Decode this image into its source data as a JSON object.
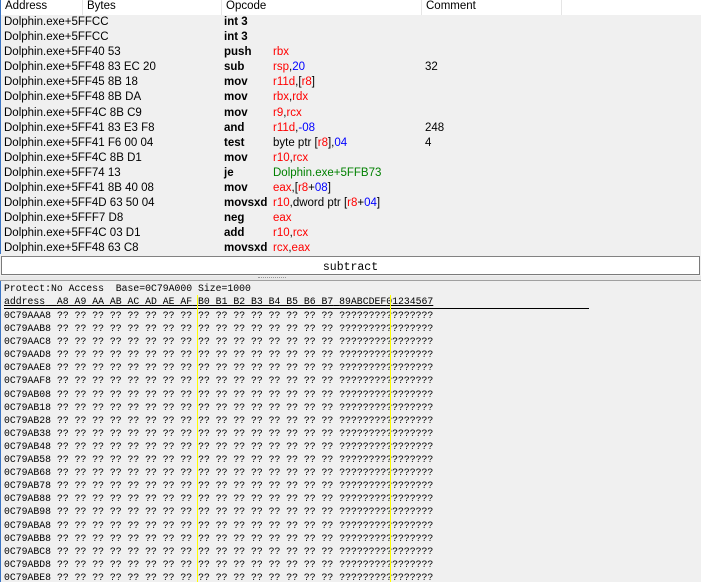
{
  "disassembler": {
    "columns": {
      "address": "Address",
      "bytes": "Bytes",
      "opcode": "Opcode",
      "comment": "Comment"
    },
    "colors": {
      "register": "#ff0000",
      "number": "#0000ff",
      "address": "#008000",
      "text": "#000000"
    },
    "rows": [
      {
        "address": "Dolphin.exe+5FF",
        "bytes": "CC",
        "opcode": "int 3",
        "args": [],
        "comment": ""
      },
      {
        "address": "Dolphin.exe+5FF",
        "bytes": "CC",
        "opcode": "int 3",
        "args": [],
        "comment": ""
      },
      {
        "address": "Dolphin.exe+5FF",
        "bytes": "40 53",
        "opcode": "push",
        "args": [
          [
            "rbx",
            "r"
          ]
        ],
        "comment": ""
      },
      {
        "address": "Dolphin.exe+5FF",
        "bytes": "48 83 EC 20",
        "opcode": "sub",
        "args": [
          [
            "rsp",
            "r"
          ],
          [
            ",",
            "t"
          ],
          [
            "20",
            "n"
          ]
        ],
        "comment": "32"
      },
      {
        "address": "Dolphin.exe+5FF",
        "bytes": "45 8B 18",
        "opcode": "mov",
        "args": [
          [
            "r11d",
            "r"
          ],
          [
            ",[",
            "t"
          ],
          [
            "r8",
            "r"
          ],
          [
            "]",
            "t"
          ]
        ],
        "comment": ""
      },
      {
        "address": "Dolphin.exe+5FF",
        "bytes": "48 8B DA",
        "opcode": "mov",
        "args": [
          [
            "rbx",
            "r"
          ],
          [
            ",",
            "t"
          ],
          [
            "rdx",
            "r"
          ]
        ],
        "comment": ""
      },
      {
        "address": "Dolphin.exe+5FF",
        "bytes": "4C 8B C9",
        "opcode": "mov",
        "args": [
          [
            "r9",
            "r"
          ],
          [
            ",",
            "t"
          ],
          [
            "rcx",
            "r"
          ]
        ],
        "comment": ""
      },
      {
        "address": "Dolphin.exe+5FF",
        "bytes": "41 83 E3 F8",
        "opcode": "and",
        "args": [
          [
            "r11d",
            "r"
          ],
          [
            ",",
            "t"
          ],
          [
            "-08",
            "n"
          ]
        ],
        "comment": "248"
      },
      {
        "address": "Dolphin.exe+5FF",
        "bytes": "41 F6 00 04",
        "opcode": "test",
        "args": [
          [
            "byte ptr [",
            "t"
          ],
          [
            "r8",
            "r"
          ],
          [
            "],",
            "t"
          ],
          [
            "04",
            "n"
          ]
        ],
        "comment": "4"
      },
      {
        "address": "Dolphin.exe+5FF",
        "bytes": "4C 8B D1",
        "opcode": "mov",
        "args": [
          [
            "r10",
            "r"
          ],
          [
            ",",
            "t"
          ],
          [
            "rcx",
            "r"
          ]
        ],
        "comment": ""
      },
      {
        "address": "Dolphin.exe+5FF",
        "bytes": "74 13",
        "opcode": "je",
        "args": [
          [
            "Dolphin.exe+5FFB73",
            "a"
          ]
        ],
        "comment": ""
      },
      {
        "address": "Dolphin.exe+5FF",
        "bytes": "41 8B 40 08",
        "opcode": "mov",
        "args": [
          [
            "eax",
            "r"
          ],
          [
            ",[",
            "t"
          ],
          [
            "r8",
            "r"
          ],
          [
            "+",
            "t"
          ],
          [
            "08",
            "n"
          ],
          [
            "]",
            "t"
          ]
        ],
        "comment": ""
      },
      {
        "address": "Dolphin.exe+5FF",
        "bytes": "4D 63 50 04",
        "opcode": "movsxd",
        "args": [
          [
            " r10",
            "r"
          ],
          [
            ",dword ptr [",
            "t"
          ],
          [
            "r8",
            "r"
          ],
          [
            "+",
            "t"
          ],
          [
            "04",
            "n"
          ],
          [
            "]",
            "t"
          ]
        ],
        "comment": ""
      },
      {
        "address": "Dolphin.exe+5FF",
        "bytes": "F7 D8",
        "opcode": "neg",
        "args": [
          [
            "eax",
            "r"
          ]
        ],
        "comment": ""
      },
      {
        "address": "Dolphin.exe+5FF",
        "bytes": "4C 03 D1",
        "opcode": "add",
        "args": [
          [
            "r10",
            "r"
          ],
          [
            ",",
            "t"
          ],
          [
            "rcx",
            "r"
          ]
        ],
        "comment": ""
      },
      {
        "address": "Dolphin.exe+5FF",
        "bytes": "48 63 C8",
        "opcode": "movsxd",
        "args": [
          [
            " rcx",
            "r"
          ],
          [
            ",",
            "t"
          ],
          [
            "eax",
            "r"
          ]
        ],
        "comment": ""
      }
    ]
  },
  "command_input": {
    "value": "subtract"
  },
  "hexview": {
    "info": "Protect:No Access  Base=0C79A000 Size=1000",
    "header": {
      "address": "address",
      "bytes_lo": "A8 A9 AA AB AC AD AE AF",
      "bytes_hi": "B0 B1 B2 B3 B4 B5 B6 B7",
      "ascii_lo": "89ABCDEF",
      "ascii_hi": "01234567"
    },
    "separator_color": "#ffff00",
    "rows": [
      {
        "address": "0C79AAA8",
        "bytes_lo": "?? ?? ?? ?? ?? ?? ?? ??",
        "bytes_hi": "?? ?? ?? ?? ?? ?? ?? ??",
        "ascii_lo": "????????",
        "ascii_hi": "????????"
      },
      {
        "address": "0C79AAB8",
        "bytes_lo": "?? ?? ?? ?? ?? ?? ?? ??",
        "bytes_hi": "?? ?? ?? ?? ?? ?? ?? ??",
        "ascii_lo": "????????",
        "ascii_hi": "????????"
      },
      {
        "address": "0C79AAC8",
        "bytes_lo": "?? ?? ?? ?? ?? ?? ?? ??",
        "bytes_hi": "?? ?? ?? ?? ?? ?? ?? ??",
        "ascii_lo": "????????",
        "ascii_hi": "????????"
      },
      {
        "address": "0C79AAD8",
        "bytes_lo": "?? ?? ?? ?? ?? ?? ?? ??",
        "bytes_hi": "?? ?? ?? ?? ?? ?? ?? ??",
        "ascii_lo": "????????",
        "ascii_hi": "????????"
      },
      {
        "address": "0C79AAE8",
        "bytes_lo": "?? ?? ?? ?? ?? ?? ?? ??",
        "bytes_hi": "?? ?? ?? ?? ?? ?? ?? ??",
        "ascii_lo": "????????",
        "ascii_hi": "????????"
      },
      {
        "address": "0C79AAF8",
        "bytes_lo": "?? ?? ?? ?? ?? ?? ?? ??",
        "bytes_hi": "?? ?? ?? ?? ?? ?? ?? ??",
        "ascii_lo": "????????",
        "ascii_hi": "????????"
      },
      {
        "address": "0C79AB08",
        "bytes_lo": "?? ?? ?? ?? ?? ?? ?? ??",
        "bytes_hi": "?? ?? ?? ?? ?? ?? ?? ??",
        "ascii_lo": "????????",
        "ascii_hi": "????????"
      },
      {
        "address": "0C79AB18",
        "bytes_lo": "?? ?? ?? ?? ?? ?? ?? ??",
        "bytes_hi": "?? ?? ?? ?? ?? ?? ?? ??",
        "ascii_lo": "????????",
        "ascii_hi": "????????"
      },
      {
        "address": "0C79AB28",
        "bytes_lo": "?? ?? ?? ?? ?? ?? ?? ??",
        "bytes_hi": "?? ?? ?? ?? ?? ?? ?? ??",
        "ascii_lo": "????????",
        "ascii_hi": "????????"
      },
      {
        "address": "0C79AB38",
        "bytes_lo": "?? ?? ?? ?? ?? ?? ?? ??",
        "bytes_hi": "?? ?? ?? ?? ?? ?? ?? ??",
        "ascii_lo": "????????",
        "ascii_hi": "????????"
      },
      {
        "address": "0C79AB48",
        "bytes_lo": "?? ?? ?? ?? ?? ?? ?? ??",
        "bytes_hi": "?? ?? ?? ?? ?? ?? ?? ??",
        "ascii_lo": "????????",
        "ascii_hi": "????????"
      },
      {
        "address": "0C79AB58",
        "bytes_lo": "?? ?? ?? ?? ?? ?? ?? ??",
        "bytes_hi": "?? ?? ?? ?? ?? ?? ?? ??",
        "ascii_lo": "????????",
        "ascii_hi": "????????"
      },
      {
        "address": "0C79AB68",
        "bytes_lo": "?? ?? ?? ?? ?? ?? ?? ??",
        "bytes_hi": "?? ?? ?? ?? ?? ?? ?? ??",
        "ascii_lo": "????????",
        "ascii_hi": "????????"
      },
      {
        "address": "0C79AB78",
        "bytes_lo": "?? ?? ?? ?? ?? ?? ?? ??",
        "bytes_hi": "?? ?? ?? ?? ?? ?? ?? ??",
        "ascii_lo": "????????",
        "ascii_hi": "????????"
      },
      {
        "address": "0C79AB88",
        "bytes_lo": "?? ?? ?? ?? ?? ?? ?? ??",
        "bytes_hi": "?? ?? ?? ?? ?? ?? ?? ??",
        "ascii_lo": "????????",
        "ascii_hi": "????????"
      },
      {
        "address": "0C79AB98",
        "bytes_lo": "?? ?? ?? ?? ?? ?? ?? ??",
        "bytes_hi": "?? ?? ?? ?? ?? ?? ?? ??",
        "ascii_lo": "????????",
        "ascii_hi": "????????"
      },
      {
        "address": "0C79ABA8",
        "bytes_lo": "?? ?? ?? ?? ?? ?? ?? ??",
        "bytes_hi": "?? ?? ?? ?? ?? ?? ?? ??",
        "ascii_lo": "????????",
        "ascii_hi": "????????"
      },
      {
        "address": "0C79ABB8",
        "bytes_lo": "?? ?? ?? ?? ?? ?? ?? ??",
        "bytes_hi": "?? ?? ?? ?? ?? ?? ?? ??",
        "ascii_lo": "????????",
        "ascii_hi": "????????"
      },
      {
        "address": "0C79ABC8",
        "bytes_lo": "?? ?? ?? ?? ?? ?? ?? ??",
        "bytes_hi": "?? ?? ?? ?? ?? ?? ?? ??",
        "ascii_lo": "????????",
        "ascii_hi": "????????"
      },
      {
        "address": "0C79ABD8",
        "bytes_lo": "?? ?? ?? ?? ?? ?? ?? ??",
        "bytes_hi": "?? ?? ?? ?? ?? ?? ?? ??",
        "ascii_lo": "????????",
        "ascii_hi": "????????"
      },
      {
        "address": "0C79ABE8",
        "bytes_lo": "?? ?? ?? ?? ?? ?? ?? ??",
        "bytes_hi": "?? ?? ?? ?? ?? ?? ?? ??",
        "ascii_lo": "????????",
        "ascii_hi": "????????"
      }
    ]
  }
}
